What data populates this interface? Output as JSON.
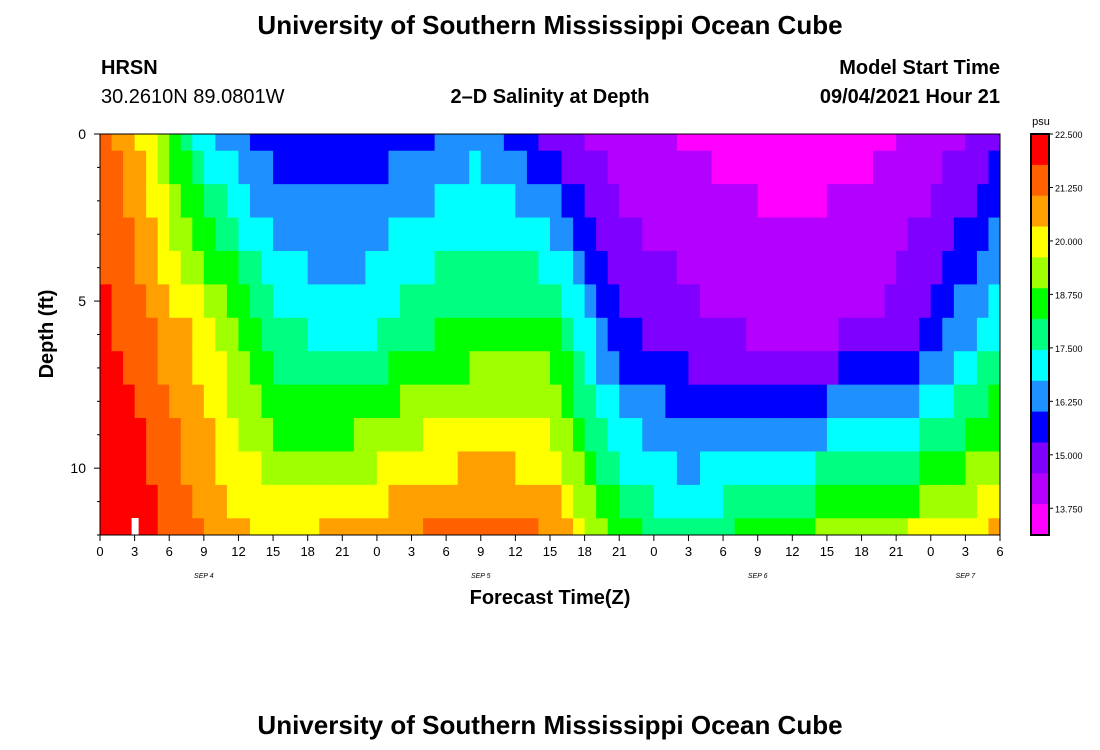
{
  "header": {
    "title": "University of Southern Mississippi Ocean Cube",
    "station": "HRSN",
    "coords": "30.2610N  89.0801W",
    "model_start_label": "Model Start Time",
    "model_start_value": "09/04/2021 Hour 21"
  },
  "footer": {
    "title": "University of Southern Mississippi Ocean Cube"
  },
  "chart_data": {
    "type": "heatmap",
    "title": "2–D Salinity at Depth",
    "xlabel": "Forecast Time(Z)",
    "ylabel": "Depth (ft)",
    "x_tick_labels": [
      "0",
      "3",
      "6",
      "9",
      "12",
      "15",
      "18",
      "21",
      "0",
      "3",
      "6",
      "9",
      "12",
      "15",
      "18",
      "21",
      "0",
      "3",
      "6",
      "9",
      "12",
      "15",
      "18",
      "21",
      "0",
      "3",
      "6"
    ],
    "date_labels": [
      {
        "label": "SEP 4",
        "hour_index": 3
      },
      {
        "label": "SEP 5",
        "hour_index": 11
      },
      {
        "label": "SEP 6",
        "hour_index": 19
      },
      {
        "label": "SEP 7",
        "hour_index": 25
      }
    ],
    "x_range_hours": [
      0,
      78
    ],
    "y_tick_labels": [
      "0",
      "5",
      "10"
    ],
    "y_range_ft": [
      0,
      12
    ],
    "depths_ft": [
      0,
      1,
      2,
      3,
      4,
      5,
      6,
      7,
      8,
      9,
      10,
      11,
      12
    ],
    "colorbar": {
      "unit": "psu",
      "min": 13.125,
      "max": 22.5,
      "tick_labels": [
        "22.500",
        "21.250",
        "20.000",
        "18.750",
        "17.500",
        "16.250",
        "15.000",
        "13.750"
      ],
      "colors": [
        "#ff00ff",
        "#b300ff",
        "#8000ff",
        "#0000ff",
        "#1e90ff",
        "#00ffff",
        "#00ff80",
        "#00ff00",
        "#a0ff00",
        "#ffff00",
        "#ffa000",
        "#ff6000",
        "#ff0000"
      ]
    },
    "salinity_profile_psu": {
      "description_hours": [
        0,
        3,
        9,
        15,
        21,
        27,
        33,
        39,
        45,
        51,
        57,
        63,
        69,
        75,
        78
      ],
      "surface": [
        21.5,
        20.5,
        17.0,
        15.5,
        15.5,
        15.8,
        16.5,
        15.0,
        14.0,
        13.8,
        13.5,
        13.5,
        13.8,
        14.5,
        15.0
      ],
      "mid": [
        22.0,
        21.5,
        20.0,
        17.8,
        17.0,
        18.0,
        18.5,
        18.5,
        15.5,
        14.8,
        14.5,
        14.5,
        14.8,
        16.5,
        17.5
      ],
      "bottom": [
        22.3,
        22.3,
        21.0,
        20.0,
        20.5,
        21.0,
        21.5,
        21.0,
        18.5,
        17.5,
        18.5,
        19.0,
        19.5,
        20.0,
        20.5
      ]
    },
    "marker_hour": 3
  }
}
